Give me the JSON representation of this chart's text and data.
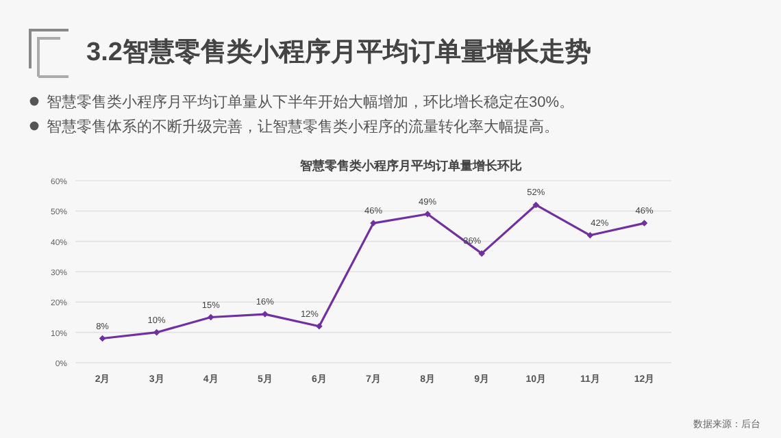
{
  "chart_data": {
    "type": "line",
    "title": "3.2智慧零售类小程序月平均订单量增长走势",
    "subtitle": "智慧零售类小程序月平均订单量增长环比",
    "categories": [
      "2月",
      "3月",
      "4月",
      "5月",
      "6月",
      "7月",
      "8月",
      "9月",
      "10月",
      "11月",
      "12月"
    ],
    "series": [
      {
        "color": "#7030a0",
        "values": [
          8,
          10,
          15,
          16,
          12,
          46,
          49,
          36,
          52,
          42,
          46
        ],
        "value_labels": [
          "8%",
          "10%",
          "15%",
          "16%",
          "12%",
          "46%",
          "49%",
          "36%",
          "52%",
          "42%",
          "46%"
        ]
      }
    ],
    "ylim": [
      0,
      60
    ],
    "yticks": [
      {
        "value": 0,
        "label": "0%"
      },
      {
        "value": 10,
        "label": "10%"
      },
      {
        "value": 20,
        "label": "20%"
      },
      {
        "value": 30,
        "label": "30%"
      },
      {
        "value": 40,
        "label": "40%"
      },
      {
        "value": 50,
        "label": "50%"
      },
      {
        "value": 60,
        "label": "60%"
      }
    ],
    "grid": "y",
    "marker": "diamond",
    "line_style": "solid",
    "annotations": [
      "智慧零售类小程序月平均订单量从下半年开始大幅增加，环比增长稳定在30%。",
      "智慧零售体系的不断升级完善，让智慧零售类小程序的流量转化率大幅提高。",
      "数据来源：后台"
    ]
  }
}
